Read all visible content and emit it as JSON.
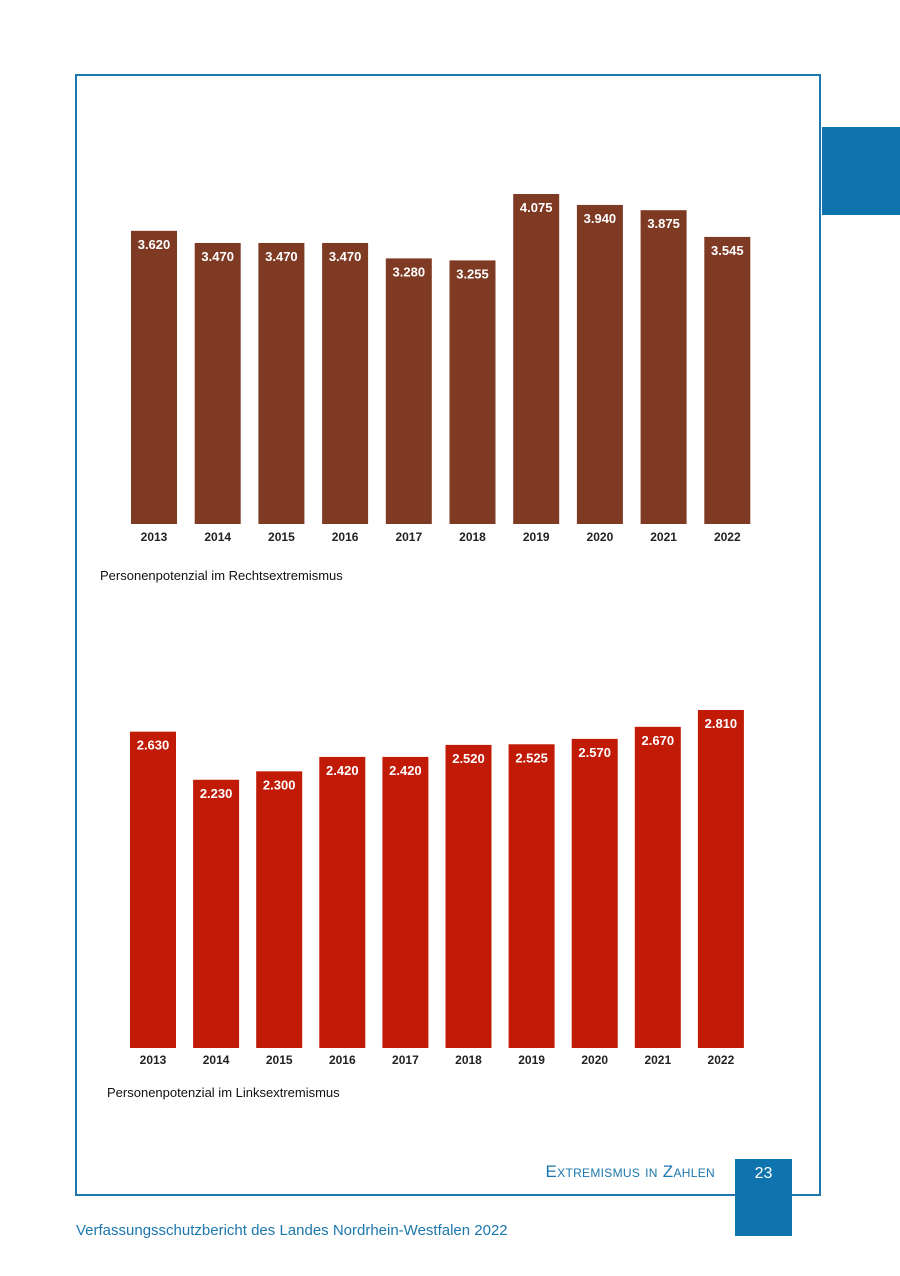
{
  "colors": {
    "accent": "#0f74ad",
    "frame": "#1b77ad",
    "bar1": "#7f3a24",
    "bar2": "#c11a07"
  },
  "chart_data": [
    {
      "type": "bar",
      "categories": [
        "2013",
        "2014",
        "2015",
        "2016",
        "2017",
        "2018",
        "2019",
        "2020",
        "2021",
        "2022"
      ],
      "values": [
        3620,
        3470,
        3470,
        3470,
        3280,
        3255,
        4075,
        3940,
        3875,
        3545
      ],
      "labels": [
        "3.620",
        "3.470",
        "3.470",
        "3.470",
        "3.280",
        "3.255",
        "4.075",
        "3.940",
        "3.875",
        "3.545"
      ],
      "title": "Personenpotenzial im Rechtsextremismus",
      "ylim": [
        0,
        4075
      ],
      "color": "#7f3a24"
    },
    {
      "type": "bar",
      "categories": [
        "2013",
        "2014",
        "2015",
        "2016",
        "2017",
        "2018",
        "2019",
        "2020",
        "2021",
        "2022"
      ],
      "values": [
        2630,
        2230,
        2300,
        2420,
        2420,
        2520,
        2525,
        2570,
        2670,
        2810
      ],
      "labels": [
        "2.630",
        "2.230",
        "2.300",
        "2.420",
        "2.420",
        "2.520",
        "2.525",
        "2.570",
        "2.670",
        "2.810"
      ],
      "title": "Personenpotenzial im Linksextremismus",
      "ylim": [
        0,
        2810
      ],
      "color": "#c11a07"
    }
  ],
  "section_title": "Extremismus in Zahlen",
  "page_number": "23",
  "footer": "Verfassungsschutzbericht des Landes Nordrhein-Westfalen 2022"
}
